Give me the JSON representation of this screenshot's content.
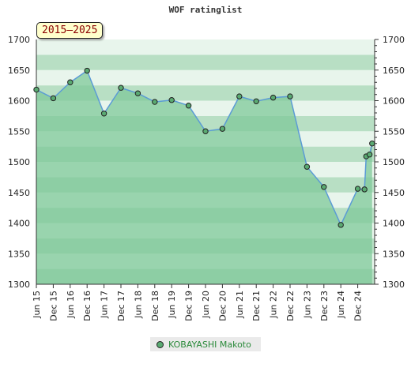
{
  "title": "WOF ratinglist",
  "badge": "2015–2025",
  "legend": {
    "label": "KOBAYASHI Makoto",
    "color": "#5aaa72"
  },
  "colors": {
    "line": "#5b9bd5",
    "fill": "#7fc89a",
    "band_dark": "#b8dfc4",
    "band_light": "#e8f5ec"
  },
  "chart_data": {
    "type": "line",
    "title": "WOF ratinglist",
    "ylim": [
      1300,
      1700
    ],
    "yticks": [
      1300,
      1350,
      1400,
      1450,
      1500,
      1550,
      1600,
      1650,
      1700
    ],
    "xticks": [
      "Jun 15",
      "Dec 15",
      "Jun 16",
      "Dec 16",
      "Jun 17",
      "Dec 17",
      "Jun 18",
      "Dec 18",
      "Jun 19",
      "Dec 19",
      "Jun 20",
      "Dec 20",
      "Jun 21",
      "Dec 21",
      "Jun 22",
      "Dec 22",
      "Jun 23",
      "Dec 23",
      "Jun 24",
      "Dec 24"
    ],
    "x_index_range": [
      0,
      20
    ],
    "series": [
      {
        "name": "KOBAYASHI Makoto",
        "x": [
          0,
          1,
          2,
          3,
          4,
          5,
          6,
          7,
          8,
          9,
          10,
          11,
          12,
          13,
          14,
          15,
          16,
          17,
          18,
          19,
          19.4,
          19.5,
          19.7,
          19.85
        ],
        "values": [
          1618,
          1604,
          1630,
          1649,
          1579,
          1621,
          1612,
          1598,
          1601,
          1592,
          1550,
          1554,
          1607,
          1599,
          1605,
          1607,
          1492,
          1459,
          1397,
          1456,
          1455,
          1509,
          1512,
          1530
        ]
      }
    ],
    "grid": true,
    "legend_position": "bottom"
  }
}
